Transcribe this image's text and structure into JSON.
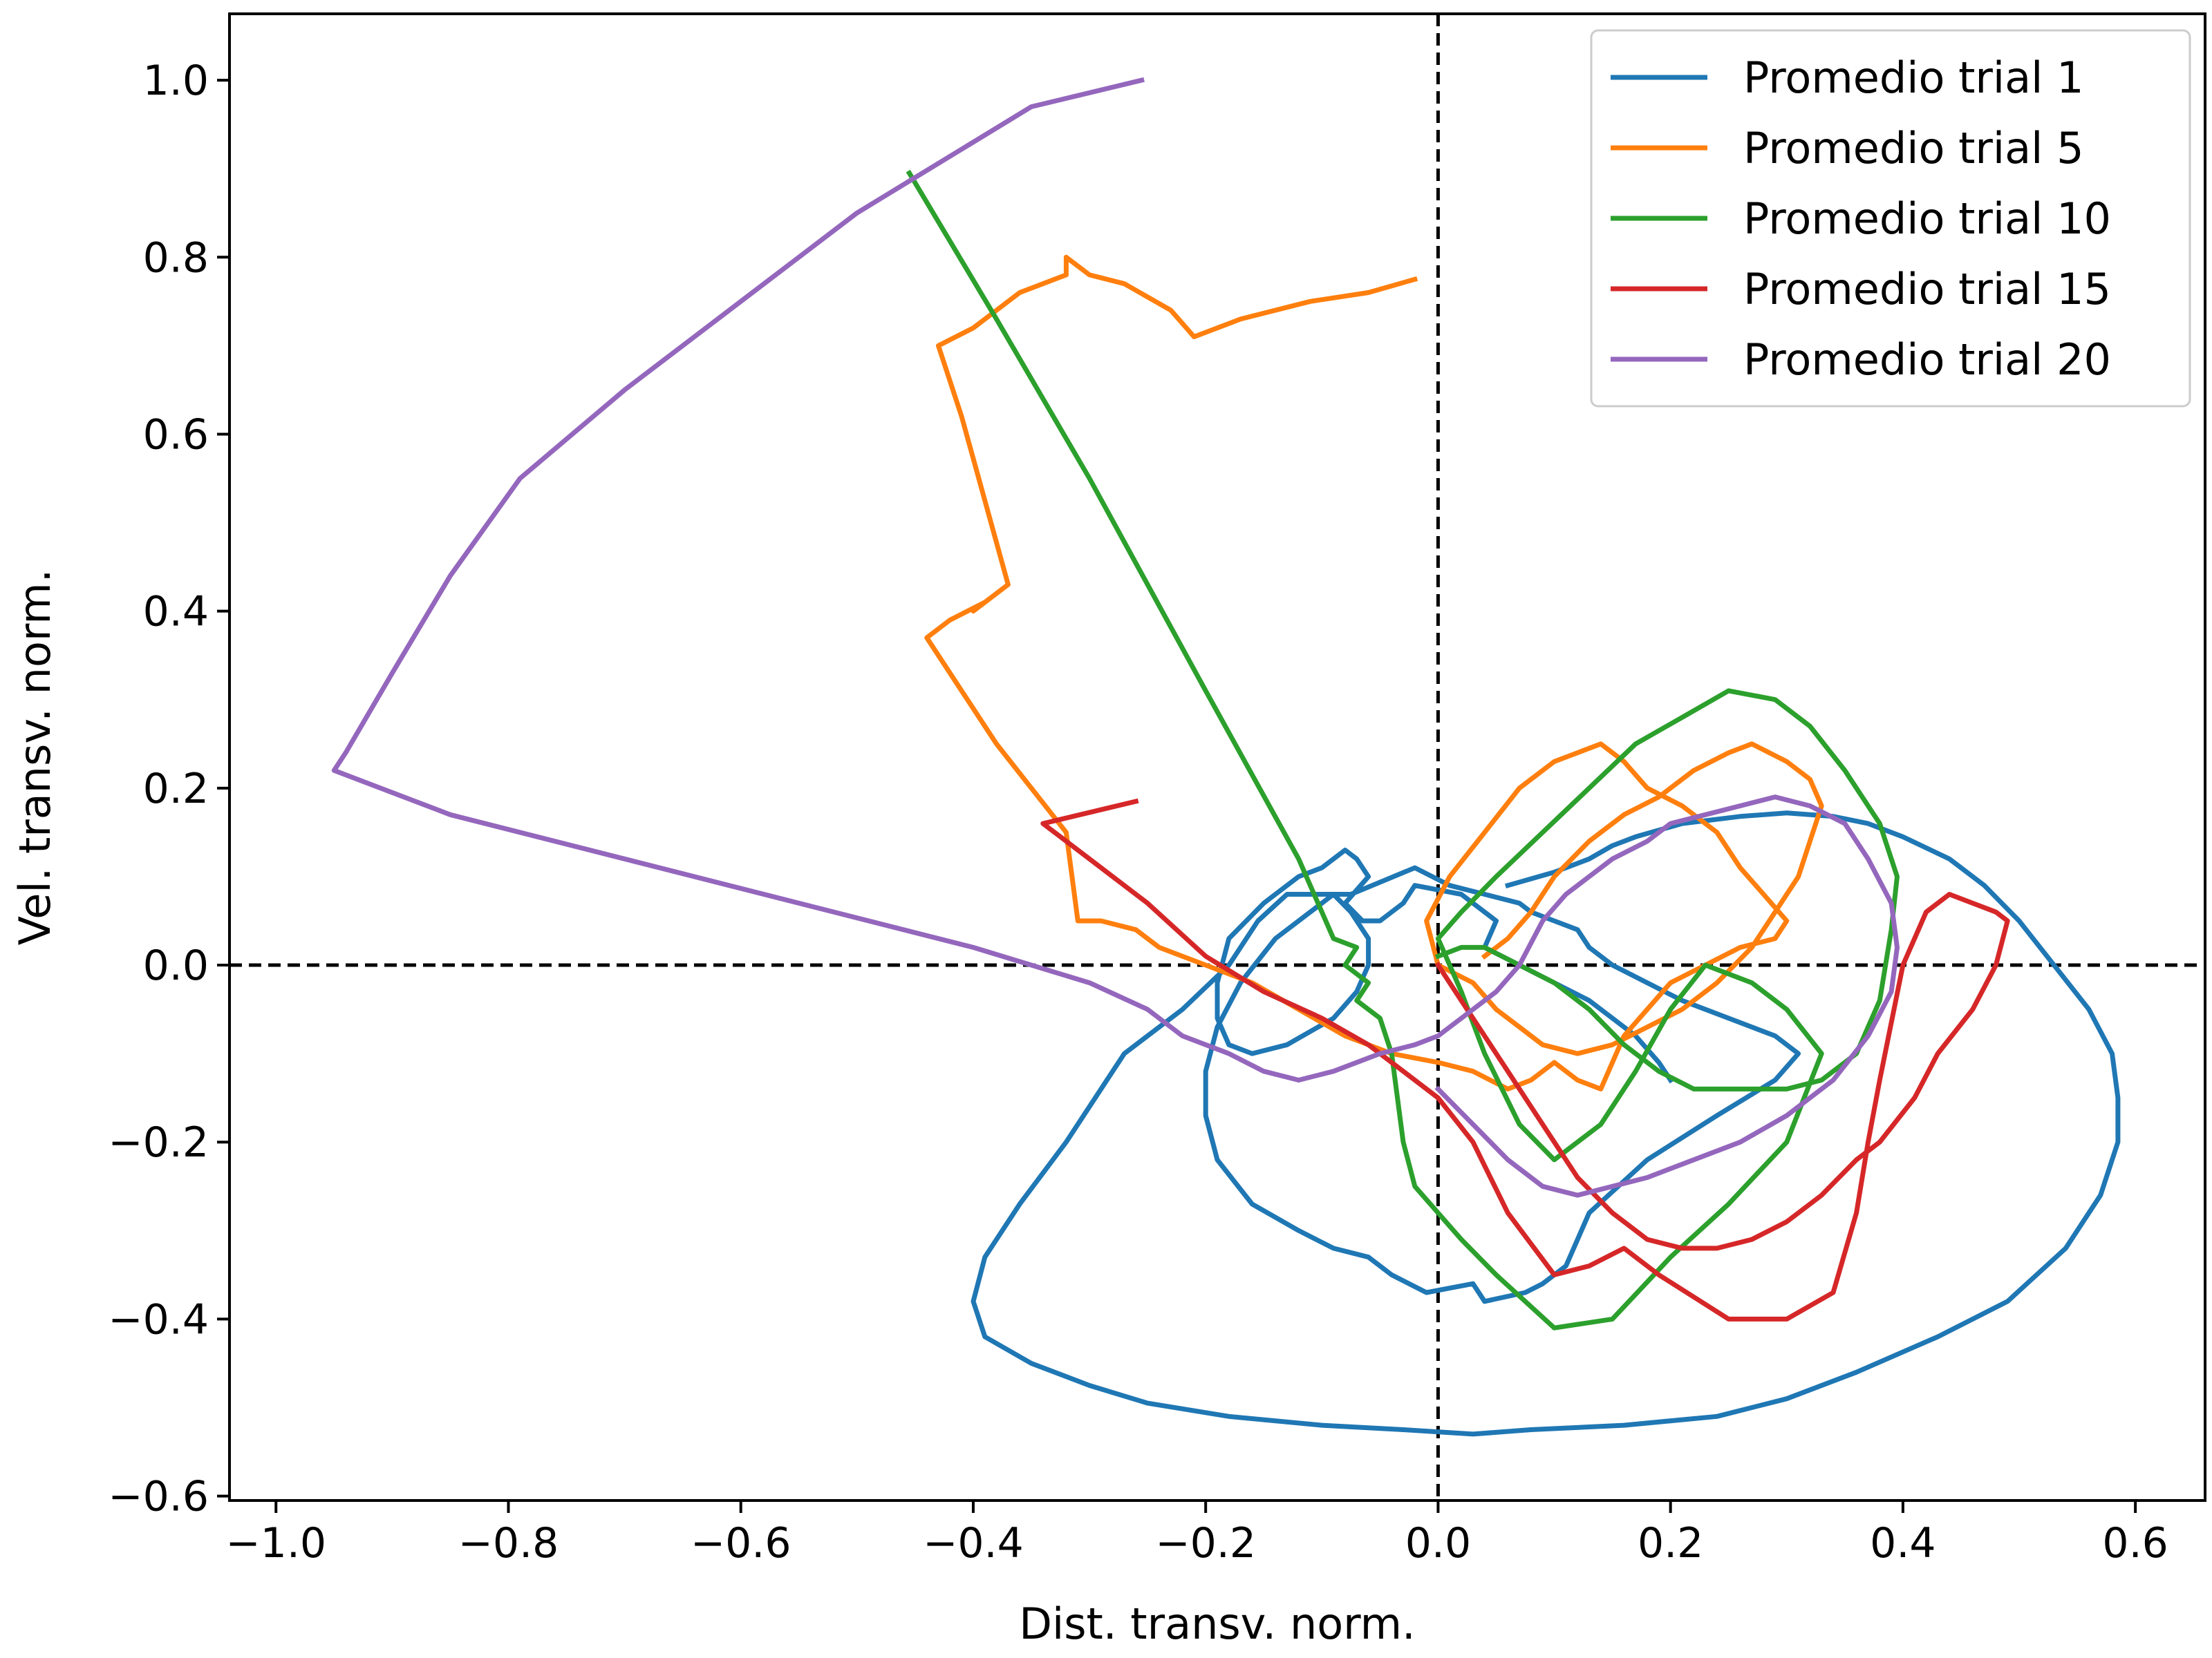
{
  "chart_data": {
    "type": "line",
    "title": "",
    "xlabel": "Dist. transv. norm.",
    "ylabel": "Vel. transv. norm.",
    "xlim": [
      -1.04,
      0.66
    ],
    "ylim": [
      -0.605,
      1.075
    ],
    "x_ticks": [
      -1.0,
      -0.8,
      -0.6,
      -0.4,
      -0.2,
      0.0,
      0.2,
      0.4,
      0.6
    ],
    "x_tick_labels": [
      "−1.0",
      "−0.8",
      "−0.6",
      "−0.4",
      "−0.2",
      "0.0",
      "0.2",
      "0.4",
      "0.6"
    ],
    "y_ticks": [
      -0.6,
      -0.4,
      -0.2,
      0.0,
      0.2,
      0.4,
      0.6,
      0.8,
      1.0
    ],
    "y_tick_labels": [
      "−0.6",
      "−0.4",
      "−0.2",
      "0.0",
      "0.2",
      "0.4",
      "0.6",
      "0.8",
      "1.0"
    ],
    "reference_lines": {
      "x": 0.0,
      "y": 0.0,
      "style": "dashed",
      "color": "#000000"
    },
    "grid": false,
    "legend_position": "top-right",
    "series": [
      {
        "name": "Promedio trial 1",
        "color": "#1f77b4",
        "x": [
          0.06,
          0.1,
          0.13,
          0.15,
          0.17,
          0.21,
          0.26,
          0.3,
          0.34,
          0.37,
          0.4,
          0.44,
          0.47,
          0.5,
          0.53,
          0.56,
          0.58,
          0.585,
          0.585,
          0.57,
          0.54,
          0.49,
          0.43,
          0.36,
          0.3,
          0.24,
          0.16,
          0.08,
          0.03,
          -0.03,
          -0.1,
          -0.18,
          -0.25,
          -0.3,
          -0.35,
          -0.39,
          -0.4,
          -0.39,
          -0.36,
          -0.32,
          -0.27,
          -0.22,
          -0.18,
          -0.155,
          -0.13,
          -0.075,
          -0.02,
          0.01,
          0.04,
          0.07,
          0.08,
          0.09,
          0.1,
          0.12,
          0.13,
          0.15,
          0.18,
          0.21,
          0.25,
          0.29,
          0.31,
          0.29,
          0.24,
          0.18,
          0.13,
          0.11,
          0.1,
          0.09,
          0.075,
          0.04,
          0.03,
          0.01,
          -0.01,
          -0.04,
          -0.06,
          -0.09,
          -0.12,
          -0.16,
          -0.19,
          -0.2,
          -0.2,
          -0.19,
          -0.17,
          -0.14,
          -0.11,
          -0.09,
          -0.075,
          -0.06,
          -0.06,
          -0.07,
          -0.09,
          -0.13,
          -0.16,
          -0.18,
          -0.19,
          -0.19,
          -0.18,
          -0.15,
          -0.12,
          -0.1,
          -0.09,
          -0.08,
          -0.07,
          -0.06,
          -0.08,
          -0.065,
          -0.05,
          -0.03,
          -0.02,
          0.02,
          0.05,
          0.04,
          0.07,
          0.1,
          0.13,
          0.15,
          0.17,
          0.19,
          0.2
        ],
        "y": [
          0.09,
          0.105,
          0.12,
          0.135,
          0.145,
          0.16,
          0.168,
          0.172,
          0.168,
          0.16,
          0.145,
          0.12,
          0.09,
          0.05,
          0.0,
          -0.05,
          -0.1,
          -0.15,
          -0.2,
          -0.26,
          -0.32,
          -0.38,
          -0.42,
          -0.46,
          -0.49,
          -0.51,
          -0.52,
          -0.525,
          -0.53,
          -0.525,
          -0.52,
          -0.51,
          -0.495,
          -0.475,
          -0.45,
          -0.42,
          -0.38,
          -0.33,
          -0.27,
          -0.2,
          -0.1,
          -0.05,
          0.0,
          0.05,
          0.08,
          0.08,
          0.11,
          0.09,
          0.08,
          0.07,
          0.06,
          0.055,
          0.05,
          0.04,
          0.02,
          0.0,
          -0.02,
          -0.04,
          -0.06,
          -0.08,
          -0.1,
          -0.13,
          -0.17,
          -0.22,
          -0.28,
          -0.34,
          -0.35,
          -0.36,
          -0.37,
          -0.38,
          -0.36,
          -0.365,
          -0.37,
          -0.35,
          -0.33,
          -0.32,
          -0.3,
          -0.27,
          -0.22,
          -0.17,
          -0.12,
          -0.07,
          -0.02,
          0.03,
          0.06,
          0.08,
          0.06,
          0.03,
          0.0,
          -0.03,
          -0.06,
          -0.09,
          -0.1,
          -0.09,
          -0.06,
          -0.02,
          0.03,
          0.07,
          0.1,
          0.11,
          0.12,
          0.13,
          0.12,
          0.1,
          0.07,
          0.05,
          0.05,
          0.07,
          0.09,
          0.08,
          0.05,
          0.02,
          0.0,
          -0.02,
          -0.04,
          -0.06,
          -0.08,
          -0.11,
          -0.13
        ]
      },
      {
        "name": "Promedio trial 5",
        "color": "#ff7f0e",
        "x": [
          -0.02,
          -0.06,
          -0.11,
          -0.17,
          -0.21,
          -0.23,
          -0.27,
          -0.3,
          -0.32,
          -0.32,
          -0.36,
          -0.38,
          -0.4,
          -0.43,
          -0.41,
          -0.37,
          -0.4,
          -0.39,
          -0.42,
          -0.44,
          -0.41,
          -0.38,
          -0.35,
          -0.32,
          -0.31,
          -0.29,
          -0.26,
          -0.24,
          -0.2,
          -0.16,
          -0.12,
          -0.08,
          -0.04,
          0.0,
          0.03,
          0.06,
          0.08,
          0.1,
          0.12,
          0.14,
          0.16,
          0.18,
          0.2,
          0.23,
          0.26,
          0.29,
          0.3,
          0.28,
          0.26,
          0.24,
          0.21,
          0.18,
          0.16,
          0.14,
          0.12,
          0.1,
          0.07,
          0.04,
          0.01,
          -0.01,
          0.0,
          0.03,
          0.05,
          0.07,
          0.09,
          0.12,
          0.15,
          0.18,
          0.21,
          0.24,
          0.27,
          0.29,
          0.31,
          0.32,
          0.33,
          0.32,
          0.3,
          0.27,
          0.25,
          0.22,
          0.19,
          0.16,
          0.13,
          0.1,
          0.08,
          0.06,
          0.04
        ],
        "y": [
          0.775,
          0.76,
          0.75,
          0.73,
          0.71,
          0.74,
          0.77,
          0.78,
          0.8,
          0.78,
          0.76,
          0.74,
          0.72,
          0.7,
          0.62,
          0.43,
          0.4,
          0.41,
          0.39,
          0.37,
          0.31,
          0.25,
          0.2,
          0.15,
          0.05,
          0.05,
          0.04,
          0.02,
          0.0,
          -0.02,
          -0.05,
          -0.08,
          -0.1,
          -0.11,
          -0.12,
          -0.14,
          -0.13,
          -0.11,
          -0.13,
          -0.14,
          -0.08,
          -0.05,
          -0.02,
          0.0,
          0.02,
          0.03,
          0.05,
          0.08,
          0.11,
          0.15,
          0.18,
          0.2,
          0.23,
          0.25,
          0.24,
          0.23,
          0.2,
          0.15,
          0.1,
          0.05,
          0.0,
          -0.02,
          -0.05,
          -0.07,
          -0.09,
          -0.1,
          -0.09,
          -0.07,
          -0.05,
          -0.02,
          0.02,
          0.06,
          0.1,
          0.14,
          0.18,
          0.21,
          0.23,
          0.25,
          0.24,
          0.22,
          0.19,
          0.17,
          0.14,
          0.1,
          0.06,
          0.03,
          0.01
        ]
      },
      {
        "name": "Promedio trial 10",
        "color": "#2ca02c",
        "x": [
          -0.455,
          -0.38,
          -0.3,
          -0.2,
          -0.12,
          -0.09,
          -0.07,
          -0.08,
          -0.06,
          -0.07,
          -0.05,
          -0.04,
          -0.03,
          -0.02,
          0.0,
          0.02,
          0.05,
          0.1,
          0.15,
          0.2,
          0.25,
          0.3,
          0.33,
          0.3,
          0.27,
          0.23,
          0.2,
          0.17,
          0.14,
          0.1,
          0.07,
          0.04,
          0.02,
          0.0,
          0.02,
          0.05,
          0.09,
          0.13,
          0.17,
          0.21,
          0.25,
          0.29,
          0.32,
          0.35,
          0.38,
          0.395,
          0.39,
          0.38,
          0.36,
          0.33,
          0.3,
          0.26,
          0.22,
          0.19,
          0.16,
          0.13,
          0.1,
          0.07,
          0.04,
          0.02,
          0.0
        ],
        "y": [
          0.895,
          0.73,
          0.55,
          0.31,
          0.12,
          0.03,
          0.02,
          0.0,
          -0.02,
          -0.04,
          -0.06,
          -0.1,
          -0.2,
          -0.25,
          -0.28,
          -0.31,
          -0.35,
          -0.41,
          -0.4,
          -0.33,
          -0.27,
          -0.2,
          -0.1,
          -0.05,
          -0.02,
          0.0,
          -0.05,
          -0.12,
          -0.18,
          -0.22,
          -0.18,
          -0.1,
          -0.03,
          0.03,
          0.06,
          0.1,
          0.15,
          0.2,
          0.25,
          0.28,
          0.31,
          0.3,
          0.27,
          0.22,
          0.16,
          0.1,
          0.04,
          -0.04,
          -0.1,
          -0.13,
          -0.14,
          -0.14,
          -0.14,
          -0.12,
          -0.09,
          -0.05,
          -0.02,
          0.0,
          0.02,
          0.02,
          0.01
        ]
      },
      {
        "name": "Promedio trial 15",
        "color": "#d62728",
        "x": [
          -0.26,
          -0.34,
          -0.3,
          -0.25,
          -0.2,
          -0.15,
          -0.1,
          -0.06,
          -0.03,
          0.0,
          0.03,
          0.06,
          0.1,
          0.13,
          0.16,
          0.19,
          0.25,
          0.3,
          0.34,
          0.36,
          0.37,
          0.38,
          0.4,
          0.42,
          0.44,
          0.46,
          0.48,
          0.49,
          0.48,
          0.46,
          0.43,
          0.41,
          0.38,
          0.36,
          0.33,
          0.3,
          0.27,
          0.24,
          0.21,
          0.18,
          0.15,
          0.12,
          0.1,
          0.08,
          0.06,
          0.04,
          0.02,
          0.0
        ],
        "y": [
          0.185,
          0.16,
          0.12,
          0.07,
          0.01,
          -0.03,
          -0.06,
          -0.09,
          -0.12,
          -0.15,
          -0.2,
          -0.28,
          -0.35,
          -0.34,
          -0.32,
          -0.35,
          -0.4,
          -0.4,
          -0.37,
          -0.28,
          -0.2,
          -0.13,
          0.0,
          0.06,
          0.08,
          0.07,
          0.06,
          0.05,
          0.0,
          -0.05,
          -0.1,
          -0.15,
          -0.2,
          -0.22,
          -0.26,
          -0.29,
          -0.31,
          -0.32,
          -0.32,
          -0.31,
          -0.28,
          -0.24,
          -0.2,
          -0.16,
          -0.12,
          -0.08,
          -0.04,
          0.0
        ]
      },
      {
        "name": "Promedio trial 20",
        "color": "#9467bd",
        "x": [
          -0.255,
          -0.35,
          -0.4,
          -0.5,
          -0.6,
          -0.7,
          -0.79,
          -0.85,
          -0.9,
          -0.94,
          -0.95,
          -0.85,
          -0.7,
          -0.55,
          -0.4,
          -0.3,
          -0.25,
          -0.22,
          -0.18,
          -0.15,
          -0.12,
          -0.09,
          -0.05,
          -0.02,
          0.0,
          0.03,
          0.05,
          0.07,
          0.09,
          0.11,
          0.13,
          0.15,
          0.18,
          0.2,
          0.23,
          0.26,
          0.29,
          0.32,
          0.35,
          0.37,
          0.39,
          0.395,
          0.39,
          0.37,
          0.34,
          0.3,
          0.26,
          0.22,
          0.18,
          0.15,
          0.12,
          0.09,
          0.06,
          0.03,
          0.0
        ],
        "y": [
          1.0,
          0.97,
          0.93,
          0.85,
          0.75,
          0.65,
          0.55,
          0.44,
          0.33,
          0.24,
          0.22,
          0.17,
          0.12,
          0.07,
          0.02,
          -0.02,
          -0.05,
          -0.08,
          -0.1,
          -0.12,
          -0.13,
          -0.12,
          -0.1,
          -0.09,
          -0.08,
          -0.05,
          -0.03,
          0.0,
          0.05,
          0.08,
          0.1,
          0.12,
          0.14,
          0.16,
          0.17,
          0.18,
          0.19,
          0.18,
          0.16,
          0.12,
          0.07,
          0.02,
          -0.03,
          -0.08,
          -0.13,
          -0.17,
          -0.2,
          -0.22,
          -0.24,
          -0.25,
          -0.26,
          -0.25,
          -0.22,
          -0.18,
          -0.14
        ]
      }
    ]
  }
}
